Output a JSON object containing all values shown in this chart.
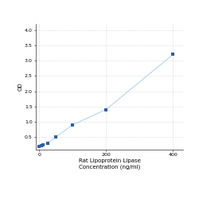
{
  "x_values": [
    0,
    6.25,
    12.5,
    25,
    50,
    100,
    200,
    400
  ],
  "y_values": [
    0.2,
    0.22,
    0.25,
    0.3,
    0.5,
    0.9,
    1.4,
    3.2
  ],
  "line_color": "#b8d4e8",
  "marker_color": "#2e5fa3",
  "marker_size": 3,
  "xlabel_line1": "Rat Lipoprotein Lipase",
  "xlabel_line2": "Concentration (ng/ml)",
  "ylabel": "OD",
  "xlim": [
    -10,
    430
  ],
  "ylim": [
    0.1,
    4.2
  ],
  "xticks": [
    0,
    200,
    400
  ],
  "yticks": [
    0.5,
    1.0,
    1.5,
    2.0,
    2.5,
    3.0,
    3.5,
    4.0
  ],
  "grid_color": "#d8d8d8",
  "background_color": "#ffffff",
  "label_fontsize": 5,
  "tick_fontsize": 4.5
}
